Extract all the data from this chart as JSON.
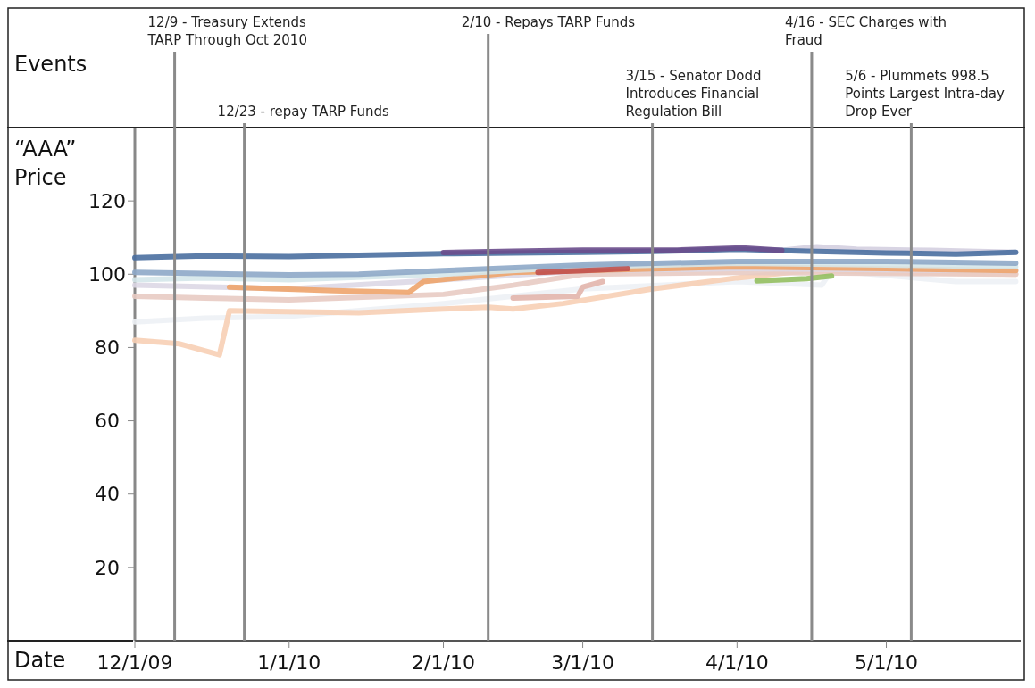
{
  "chart_data": {
    "type": "line",
    "xlabel": "Date",
    "ylabel": "“AAA” Price",
    "annotations": [
      "Events"
    ],
    "xlim": [
      "2009-12-01",
      "2010-05-28"
    ],
    "xticks": [
      {
        "value": "2009-12-01",
        "label": "12/1/09"
      },
      {
        "value": "2010-01-01",
        "label": "1/1/10"
      },
      {
        "value": "2010-02-01",
        "label": "2/1/10"
      },
      {
        "value": "2010-03-01",
        "label": "3/1/10"
      },
      {
        "value": "2010-04-01",
        "label": "4/1/10"
      },
      {
        "value": "2010-05-01",
        "label": "5/1/10"
      }
    ],
    "ylim": [
      0,
      140
    ],
    "yticks": [
      20,
      40,
      60,
      80,
      100,
      120
    ],
    "grid": false,
    "line_style": "solid",
    "marker": "none",
    "ref_lines": [
      {
        "axis": "x",
        "value": "2009-12-09",
        "label": "12/9 - Treasury Extends TARP Through Oct 2010",
        "color": "#8a8a8a"
      },
      {
        "axis": "x",
        "value": "2009-12-23",
        "label": "12/23 - repay TARP Funds",
        "color": "#8a8a8a"
      },
      {
        "axis": "x",
        "value": "2010-02-10",
        "label": "2/10 - Repays TARP Funds",
        "color": "#8a8a8a"
      },
      {
        "axis": "x",
        "value": "2010-03-15",
        "label": "3/15 - Senator Dodd Introduces Financial Regulation Bill",
        "color": "#8a8a8a"
      },
      {
        "axis": "x",
        "value": "2010-04-16",
        "label": "4/16 - SEC Charges with Fraud",
        "color": "#8a8a8a"
      },
      {
        "axis": "x",
        "value": "2010-05-06",
        "label": "5/6 - Plummets 998.5 Points Largest Intra-day Drop Ever",
        "color": "#8a8a8a"
      }
    ],
    "series": [
      {
        "color": "#edf1f5",
        "x": [
          "2009-12-01",
          "2009-12-15",
          "2010-01-01",
          "2010-02-01",
          "2010-03-01",
          "2010-04-01",
          "2010-04-18",
          "2010-04-20",
          "2010-05-15",
          "2010-05-27"
        ],
        "values": [
          87,
          88,
          88.5,
          92,
          96,
          98,
          97,
          101,
          98,
          98
        ]
      },
      {
        "color": "#f7cfb5",
        "x": [
          "2009-12-01",
          "2009-12-10",
          "2009-12-18",
          "2009-12-20",
          "2010-01-15",
          "2010-02-01",
          "2010-02-10",
          "2010-02-15",
          "2010-02-25",
          "2010-03-15",
          "2010-04-01",
          "2010-04-15",
          "2010-05-27"
        ],
        "values": [
          82,
          81,
          78,
          90,
          89.5,
          90.5,
          91,
          90.5,
          92,
          96,
          99,
          101,
          100
        ]
      },
      {
        "color": "#e8cbc3",
        "x": [
          "2009-12-01",
          "2009-12-15",
          "2010-01-01",
          "2010-02-01",
          "2010-02-15",
          "2010-03-01",
          "2010-04-01",
          "2010-05-27"
        ],
        "values": [
          94,
          93.5,
          93,
          94.5,
          97,
          100,
          100.5,
          100
        ]
      },
      {
        "color": "#e2b5ac",
        "x": [
          "2010-02-15",
          "2010-02-28",
          "2010-03-01",
          "2010-03-05"
        ],
        "values": [
          93.5,
          94,
          96.5,
          98
        ]
      },
      {
        "color": "#ddd8e6",
        "x": [
          "2009-12-01",
          "2010-01-01",
          "2010-02-01",
          "2010-03-01",
          "2010-04-01",
          "2010-05-27"
        ],
        "values": [
          97,
          96,
          98.5,
          101,
          101.5,
          101
        ]
      },
      {
        "color": "#eea46c",
        "x": [
          "2009-12-20",
          "2010-01-10",
          "2010-01-25",
          "2010-01-28",
          "2010-02-15",
          "2010-03-01",
          "2010-04-01",
          "2010-05-01",
          "2010-05-27"
        ],
        "values": [
          96.5,
          95.5,
          95,
          98,
          100.5,
          101,
          102,
          101.5,
          101
        ]
      },
      {
        "color": "#d5e7ea",
        "x": [
          "2009-12-01",
          "2009-12-15",
          "2010-01-01",
          "2010-02-01",
          "2010-03-01",
          "2010-04-01",
          "2010-05-01",
          "2010-05-27"
        ],
        "values": [
          98.5,
          99,
          98.5,
          100,
          102,
          103,
          102.5,
          102
        ]
      },
      {
        "color": "#8ea8c8",
        "x": [
          "2009-12-01",
          "2009-12-15",
          "2010-01-01",
          "2010-01-15",
          "2010-02-01",
          "2010-03-01",
          "2010-04-01",
          "2010-05-01",
          "2010-05-27"
        ],
        "values": [
          100.5,
          100.2,
          99.8,
          100,
          101,
          102.5,
          103.5,
          103.5,
          103
        ]
      },
      {
        "color": "#c0504d",
        "x": [
          "2010-02-20",
          "2010-03-01",
          "2010-03-10"
        ],
        "values": [
          100.5,
          101,
          101.5
        ]
      },
      {
        "color": "#93bf60",
        "x": [
          "2010-04-05",
          "2010-04-15",
          "2010-04-20"
        ],
        "values": [
          98.2,
          98.8,
          99.5
        ]
      },
      {
        "color": "#d4cfe0",
        "x": [
          "2010-04-10",
          "2010-04-17",
          "2010-04-25",
          "2010-05-10",
          "2010-05-27"
        ],
        "values": [
          106.5,
          107.5,
          106.8,
          106.5,
          106
        ]
      },
      {
        "color": "#4a6fa0",
        "x": [
          "2009-12-01",
          "2009-12-15",
          "2010-01-01",
          "2010-01-15",
          "2010-02-01",
          "2010-02-15",
          "2010-03-01",
          "2010-03-15",
          "2010-04-01",
          "2010-04-15",
          "2010-05-01",
          "2010-05-15",
          "2010-05-27"
        ],
        "values": [
          104.5,
          105,
          104.8,
          105.2,
          105.6,
          105.8,
          106,
          106.2,
          106.8,
          106.3,
          105.8,
          105.5,
          106
        ]
      },
      {
        "color": "#6a4c8c",
        "x": [
          "2010-02-01",
          "2010-02-15",
          "2010-03-01",
          "2010-03-20",
          "2010-04-02",
          "2010-04-10"
        ],
        "values": [
          105.9,
          106.3,
          106.6,
          106.6,
          107.2,
          106.5
        ]
      }
    ]
  }
}
